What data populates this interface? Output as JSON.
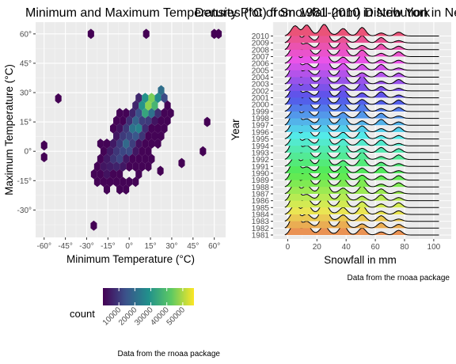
{
  "chart_data": [
    {
      "type": "heatmap",
      "subtype": "hexbin",
      "title": "Minimum and Maximum Temperatures (°C) from 1981-2010 in New York",
      "xlabel": "Minimum Temperature (°C)",
      "ylabel": "Maximum Temperature (°C)",
      "xlim": [
        -66,
        68
      ],
      "ylim": [
        -44,
        66
      ],
      "x_ticks": [
        -60,
        -45,
        -30,
        -15,
        0,
        15,
        30,
        45,
        60
      ],
      "x_tick_labels": [
        "-60°",
        "-45°",
        "-30°",
        "-15°",
        "0°",
        "15°",
        "30°",
        "45°",
        "60°"
      ],
      "y_ticks": [
        -30,
        -15,
        0,
        15,
        30,
        45,
        60
      ],
      "y_tick_labels": [
        "-30°",
        "-15°",
        "0°",
        "15°",
        "30°",
        "45°",
        "60°"
      ],
      "grid": true,
      "legend": {
        "title": "count",
        "placement": "bottom",
        "ticks": [
          10000,
          20000,
          30000,
          40000,
          50000
        ],
        "tick_labels": [
          "10000",
          "20000",
          "30000",
          "40000",
          "50000"
        ],
        "range": [
          0,
          57000
        ]
      },
      "colors": [
        "#440154",
        "#3b528b",
        "#21908c",
        "#5dc963",
        "#fde725"
      ],
      "highlights": [
        {
          "x": 15,
          "y": 25,
          "count": 55000
        },
        {
          "x": 12,
          "y": 22,
          "count": 42000
        },
        {
          "x": 5,
          "y": 12,
          "count": 28000
        },
        {
          "x": -2,
          "y": 3,
          "count": 20000
        },
        {
          "x": -8,
          "y": -3,
          "count": 13000
        },
        {
          "x": 20,
          "y": 29,
          "count": 30000
        }
      ],
      "outliers": [
        {
          "x": -27,
          "y": 60
        },
        {
          "x": 12,
          "y": 60
        },
        {
          "x": 60,
          "y": 60
        },
        {
          "x": 63,
          "y": 60
        },
        {
          "x": -50,
          "y": 27
        },
        {
          "x": -60,
          "y": 3
        },
        {
          "x": -60,
          "y": -3
        },
        {
          "x": 55,
          "y": 15
        },
        {
          "x": 52,
          "y": 0
        },
        {
          "x": 37,
          "y": -6
        },
        {
          "x": -25,
          "y": -38
        },
        {
          "x": 22,
          "y": -10
        }
      ],
      "caption": "Data from the rnoaa package"
    },
    {
      "type": "area",
      "subtype": "ridgeline",
      "title": "Density Plot of Snowfall (mm) Distribution in New York",
      "xlabel": "Snowfall in mm",
      "ylabel": "Year",
      "xlim": [
        -10,
        112
      ],
      "x_ticks": [
        0,
        20,
        40,
        60,
        80,
        100
      ],
      "x_tick_labels": [
        "0",
        "20",
        "40",
        "60",
        "80",
        "100"
      ],
      "grid": true,
      "categories": [
        "1981",
        "1982",
        "1983",
        "1984",
        "1985",
        "1986",
        "1987",
        "1988",
        "1989",
        "1990",
        "1991",
        "1992",
        "1993",
        "1994",
        "1995",
        "1996",
        "1997",
        "1998",
        "1999",
        "2000",
        "2001",
        "2002",
        "2003",
        "2004",
        "2005",
        "2006",
        "2007",
        "2008",
        "2009",
        "2010"
      ],
      "density_peaks_mm": [
        5,
        13,
        25,
        38,
        51,
        64,
        76
      ],
      "caption": "Data from the rnoaa package"
    }
  ]
}
